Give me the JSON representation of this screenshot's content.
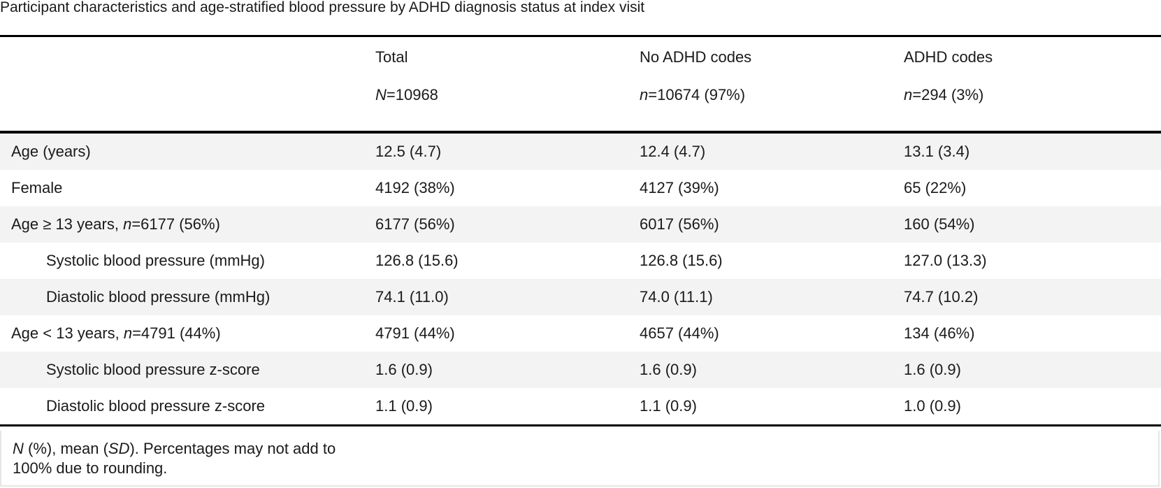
{
  "caption": "Participant characteristics and age-stratified blood pressure by ADHD diagnosis status at index visit",
  "columns": [
    {
      "name": "",
      "n_prefix": "",
      "n_text": ""
    },
    {
      "name": "Total",
      "n_prefix": "N",
      "n_text": "=10968"
    },
    {
      "name": "No ADHD codes",
      "n_prefix": "n",
      "n_text": "=10674 (97%)"
    },
    {
      "name": "ADHD codes",
      "n_prefix": "n",
      "n_text": "=294 (3%)"
    }
  ],
  "rows": [
    {
      "label": "Age (years)",
      "label_n_prefix": "",
      "label_n": "",
      "label_suffix": "",
      "indent": false,
      "values": [
        "12.5 (4.7)",
        "12.4 (4.7)",
        "13.1 (3.4)"
      ]
    },
    {
      "label": "Female",
      "label_n_prefix": "",
      "label_n": "",
      "label_suffix": "",
      "indent": false,
      "values": [
        "4192 (38%)",
        "4127 (39%)",
        "65 (22%)"
      ]
    },
    {
      "label": "Age ≥ 13 years, ",
      "label_n_prefix": "n",
      "label_n": "=6177 (56%)",
      "label_suffix": "",
      "indent": false,
      "values": [
        "6177 (56%)",
        "6017 (56%)",
        "160 (54%)"
      ]
    },
    {
      "label": "Systolic blood pressure (mmHg)",
      "label_n_prefix": "",
      "label_n": "",
      "label_suffix": "",
      "indent": true,
      "values": [
        "126.8 (15.6)",
        "126.8 (15.6)",
        "127.0 (13.3)"
      ]
    },
    {
      "label": "Diastolic blood pressure (mmHg)",
      "label_n_prefix": "",
      "label_n": "",
      "label_suffix": "",
      "indent": true,
      "values": [
        "74.1 (11.0)",
        "74.0 (11.1)",
        "74.7 (10.2)"
      ]
    },
    {
      "label": "Age < 13 years, ",
      "label_n_prefix": "n",
      "label_n": "=4791 (44%)",
      "label_suffix": "",
      "indent": false,
      "values": [
        "4791 (44%)",
        "4657 (44%)",
        "134 (46%)"
      ]
    },
    {
      "label": "Systolic blood pressure z-score",
      "label_n_prefix": "",
      "label_n": "",
      "label_suffix": "",
      "indent": true,
      "values": [
        "1.6 (0.9)",
        "1.6 (0.9)",
        "1.6 (0.9)"
      ]
    },
    {
      "label": "Diastolic blood pressure z-score",
      "label_n_prefix": "",
      "label_n": "",
      "label_suffix": "",
      "indent": true,
      "values": [
        "1.1 (0.9)",
        "1.1 (0.9)",
        "1.0 (0.9)"
      ]
    }
  ],
  "footnote": {
    "n_symbol": "N",
    "part1": " (%), mean (",
    "sd_symbol": "SD",
    "part2": "). Percentages may not add to 100% due to rounding."
  }
}
